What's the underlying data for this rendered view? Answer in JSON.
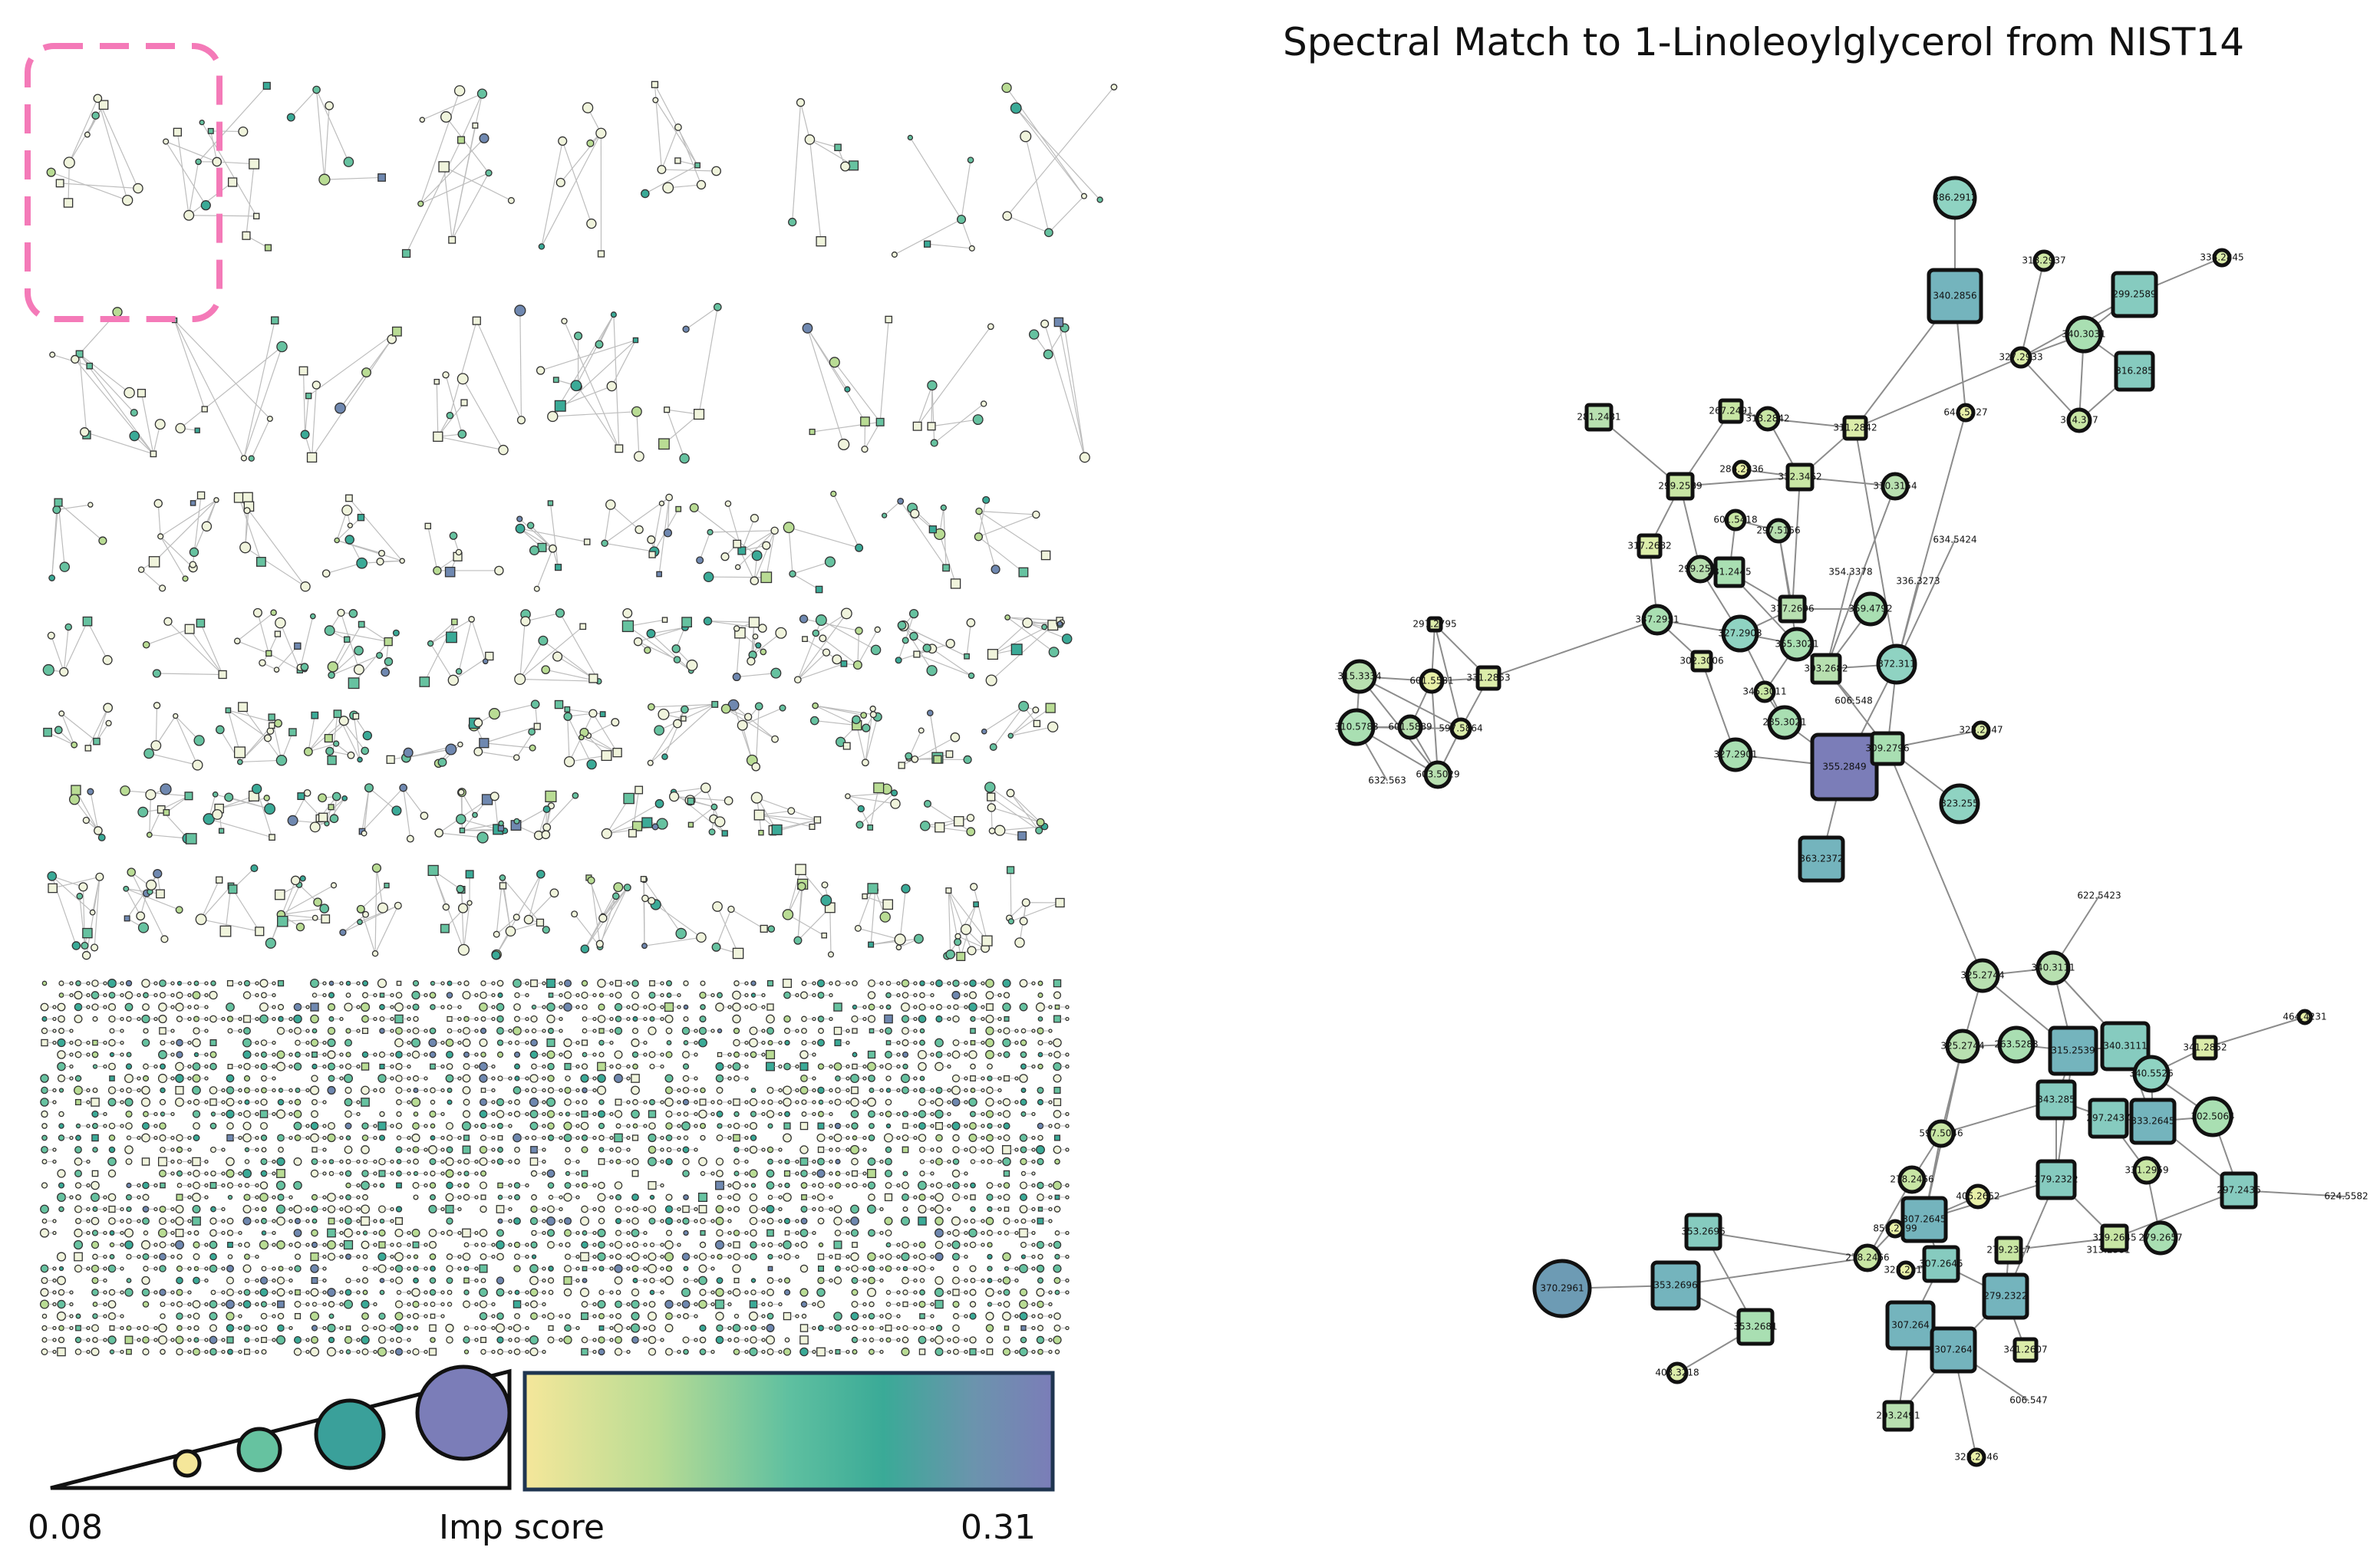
{
  "title": "Spectral Match to 1-Linoleoylglycerol from NIST14",
  "legend": {
    "min_label": "0.08",
    "axis_label": "Imp score",
    "max_label": "0.31",
    "colors": [
      "#f5e79a",
      "#b9dc94",
      "#66c2a0",
      "#3aaa97",
      "#4f9aa3",
      "#6f88b0",
      "#7b7db8"
    ]
  },
  "zoom": {
    "nodes": [
      {
        "id": "n1",
        "label": "386.2912",
        "shape": "circle",
        "color": "#8fd3c2"
      },
      {
        "id": "n2",
        "label": "340.2856",
        "shape": "square",
        "color": "#74b4bd"
      },
      {
        "id": "n3",
        "label": "318.2937",
        "shape": "circle",
        "color": "#cfe8a6"
      },
      {
        "id": "n4",
        "label": "338.2845",
        "shape": "circle",
        "color": "#dcedaa"
      },
      {
        "id": "n5",
        "label": "299.2589",
        "shape": "square",
        "color": "#86cbbf"
      },
      {
        "id": "n6",
        "label": "340.3031",
        "shape": "circle",
        "color": "#a9dfb2"
      },
      {
        "id": "n7",
        "label": "327.2933",
        "shape": "circle",
        "color": "#dcedaa"
      },
      {
        "id": "n8",
        "label": "316.285",
        "shape": "square",
        "color": "#86cbbf"
      },
      {
        "id": "n9",
        "label": "644.5327",
        "shape": "circle",
        "color": "#e8f0a8"
      },
      {
        "id": "n10",
        "label": "314.317",
        "shape": "circle",
        "color": "#c8e6a4"
      },
      {
        "id": "n11",
        "label": "281.2481",
        "shape": "square",
        "color": "#b8e0b0"
      },
      {
        "id": "n12",
        "label": "267.2491",
        "shape": "square",
        "color": "#c8e6a4"
      },
      {
        "id": "n13",
        "label": "313.2842",
        "shape": "circle",
        "color": "#c8e6a4"
      },
      {
        "id": "n14",
        "label": "311.2842",
        "shape": "square",
        "color": "#dcedaa"
      },
      {
        "id": "n15",
        "label": "286.2836",
        "shape": "circle",
        "color": "#e8f0a8"
      },
      {
        "id": "n16",
        "label": "299.2589",
        "shape": "square",
        "color": "#c8e6a4"
      },
      {
        "id": "n17",
        "label": "312.3462",
        "shape": "square",
        "color": "#c8e6a4"
      },
      {
        "id": "n18",
        "label": "310.3154",
        "shape": "circle",
        "color": "#b8e0b0"
      },
      {
        "id": "n19",
        "label": "601.5418",
        "shape": "circle",
        "color": "#c8e6a4"
      },
      {
        "id": "n20",
        "label": "297.5156",
        "shape": "circle",
        "color": "#b8e0b0"
      },
      {
        "id": "n21",
        "label": "317.2682",
        "shape": "square",
        "color": "#dcedaa"
      },
      {
        "id": "n22",
        "label": "299.2589",
        "shape": "circle",
        "color": "#b8e0b0"
      },
      {
        "id": "n23",
        "label": "281.2445",
        "shape": "square",
        "color": "#a9dfb2"
      },
      {
        "id": "n24",
        "label": "317.2696",
        "shape": "square",
        "color": "#b8e0b0"
      },
      {
        "id": "n25",
        "label": "359.4792",
        "shape": "circle",
        "color": "#a9dfb2"
      },
      {
        "id": "n26",
        "label": "337.2951",
        "shape": "circle",
        "color": "#a9dfb2"
      },
      {
        "id": "n27",
        "label": "327.2903",
        "shape": "circle",
        "color": "#8fd3c2"
      },
      {
        "id": "n28",
        "label": "355.3021",
        "shape": "circle",
        "color": "#a9dfb2"
      },
      {
        "id": "n29",
        "label": "302.3006",
        "shape": "square",
        "color": "#dcedaa"
      },
      {
        "id": "n30",
        "label": "303.2682",
        "shape": "square",
        "color": "#b8e0b0"
      },
      {
        "id": "n31",
        "label": "372.311",
        "shape": "circle",
        "color": "#8fd3c2"
      },
      {
        "id": "n32",
        "label": "345.3011",
        "shape": "circle",
        "color": "#c8e6a4"
      },
      {
        "id": "n33",
        "label": "285.3021",
        "shape": "circle",
        "color": "#a9dfb2"
      },
      {
        "id": "n34",
        "label": "327.2901",
        "shape": "circle",
        "color": "#a9dfb2"
      },
      {
        "id": "n35",
        "label": "355.2849",
        "shape": "square",
        "color": "#7b7db8"
      },
      {
        "id": "n36",
        "label": "309.2796",
        "shape": "square",
        "color": "#a9dfb2"
      },
      {
        "id": "n37",
        "label": "325.2347",
        "shape": "circle",
        "color": "#dcedaa"
      },
      {
        "id": "n38",
        "label": "323.255",
        "shape": "circle",
        "color": "#8fd3c2"
      },
      {
        "id": "n39",
        "label": "363.2372",
        "shape": "square",
        "color": "#74b4bd"
      },
      {
        "id": "n40",
        "label": "297.2795",
        "shape": "square",
        "color": "#dcedaa"
      },
      {
        "id": "n41",
        "label": "315.3334",
        "shape": "circle",
        "color": "#b8e0b0"
      },
      {
        "id": "n42",
        "label": "601.5581",
        "shape": "circle",
        "color": "#e8f0a8"
      },
      {
        "id": "n43",
        "label": "331.2853",
        "shape": "square",
        "color": "#dcedaa"
      },
      {
        "id": "n44",
        "label": "310.5783",
        "shape": "circle",
        "color": "#a9dfb2"
      },
      {
        "id": "n45",
        "label": "601.5889",
        "shape": "circle",
        "color": "#b8e0b0"
      },
      {
        "id": "n46",
        "label": "597.5864",
        "shape": "circle",
        "color": "#dcedaa"
      },
      {
        "id": "n47",
        "label": "603.5029",
        "shape": "circle",
        "color": "#b8e0b0"
      },
      {
        "id": "n48",
        "label": "325.2744",
        "shape": "circle",
        "color": "#b8e0b0"
      },
      {
        "id": "n49",
        "label": "340.3111",
        "shape": "circle",
        "color": "#b8e0b0"
      },
      {
        "id": "n50",
        "label": "464.4231",
        "shape": "circle",
        "color": "#e8f0a8"
      },
      {
        "id": "n51",
        "label": "325.2744",
        "shape": "circle",
        "color": "#b8e0b0"
      },
      {
        "id": "n52",
        "label": "263.5283",
        "shape": "circle",
        "color": "#a9dfb2"
      },
      {
        "id": "n53",
        "label": "315.2539",
        "shape": "square",
        "color": "#74b4bd"
      },
      {
        "id": "n54",
        "label": "340.3111",
        "shape": "square",
        "color": "#86cbbf"
      },
      {
        "id": "n55",
        "label": "341.2852",
        "shape": "square",
        "color": "#dcedaa"
      },
      {
        "id": "n56",
        "label": "340.5526",
        "shape": "circle",
        "color": "#8fd3c2"
      },
      {
        "id": "n57",
        "label": "343.285",
        "shape": "square",
        "color": "#86cbbf"
      },
      {
        "id": "n58",
        "label": "297.2437",
        "shape": "square",
        "color": "#86cbbf"
      },
      {
        "id": "n59",
        "label": "333.2645",
        "shape": "square",
        "color": "#74b4bd"
      },
      {
        "id": "n60",
        "label": "302.5064",
        "shape": "circle",
        "color": "#a9dfb2"
      },
      {
        "id": "n61",
        "label": "597.5046",
        "shape": "circle",
        "color": "#c8e6a4"
      },
      {
        "id": "n62",
        "label": "279.2322",
        "shape": "square",
        "color": "#86cbbf"
      },
      {
        "id": "n63",
        "label": "331.2959",
        "shape": "circle",
        "color": "#c8e6a4"
      },
      {
        "id": "n64",
        "label": "297.2436",
        "shape": "square",
        "color": "#86cbbf"
      },
      {
        "id": "n65",
        "label": "278.2466",
        "shape": "circle",
        "color": "#c8e6a4"
      },
      {
        "id": "n66",
        "label": "405.2652",
        "shape": "circle",
        "color": "#e8f0a8"
      },
      {
        "id": "n67",
        "label": "307.2645",
        "shape": "square",
        "color": "#74b4bd"
      },
      {
        "id": "n68",
        "label": "853.2799",
        "shape": "circle",
        "color": "#e8f0a8"
      },
      {
        "id": "n69",
        "label": "329.2645",
        "shape": "square",
        "color": "#c8e6a4"
      },
      {
        "id": "n70",
        "label": "279.2657",
        "shape": "circle",
        "color": "#a9dfb2"
      },
      {
        "id": "n71",
        "label": "353.2696",
        "shape": "square",
        "color": "#86cbbf"
      },
      {
        "id": "n72",
        "label": "325.2314",
        "shape": "circle",
        "color": "#e8f0a8"
      },
      {
        "id": "n73",
        "label": "279.2317",
        "shape": "square",
        "color": "#c8e6a4"
      },
      {
        "id": "n74",
        "label": "307.2645",
        "shape": "square",
        "color": "#86cbbf"
      },
      {
        "id": "n75",
        "label": "278.2466",
        "shape": "circle",
        "color": "#c8e6a4"
      },
      {
        "id": "n76",
        "label": "370.2961",
        "shape": "circle",
        "color": "#6d9bb4"
      },
      {
        "id": "n77",
        "label": "353.2696",
        "shape": "square",
        "color": "#74b4bd"
      },
      {
        "id": "n78",
        "label": "279.2322",
        "shape": "square",
        "color": "#74b4bd"
      },
      {
        "id": "n79",
        "label": "353.2681",
        "shape": "square",
        "color": "#a9dfb2"
      },
      {
        "id": "n80",
        "label": "307.264",
        "shape": "square",
        "color": "#74b4bd"
      },
      {
        "id": "n81",
        "label": "307.264",
        "shape": "square",
        "color": "#74b4bd"
      },
      {
        "id": "n82",
        "label": "341.2607",
        "shape": "square",
        "color": "#dcedaa"
      },
      {
        "id": "n83",
        "label": "403.3218",
        "shape": "circle",
        "color": "#dcedaa"
      },
      {
        "id": "n84",
        "label": "293.2491",
        "shape": "square",
        "color": "#b8e0b0"
      },
      {
        "id": "n85",
        "label": "325.2346",
        "shape": "circle",
        "color": "#e8f0a8"
      }
    ],
    "edge_labels": [
      "634.5424",
      "354.3378",
      "336.3273",
      "606.548",
      "632.563",
      "622.5423",
      "624.5582",
      "313.2381",
      "606.547"
    ]
  }
}
